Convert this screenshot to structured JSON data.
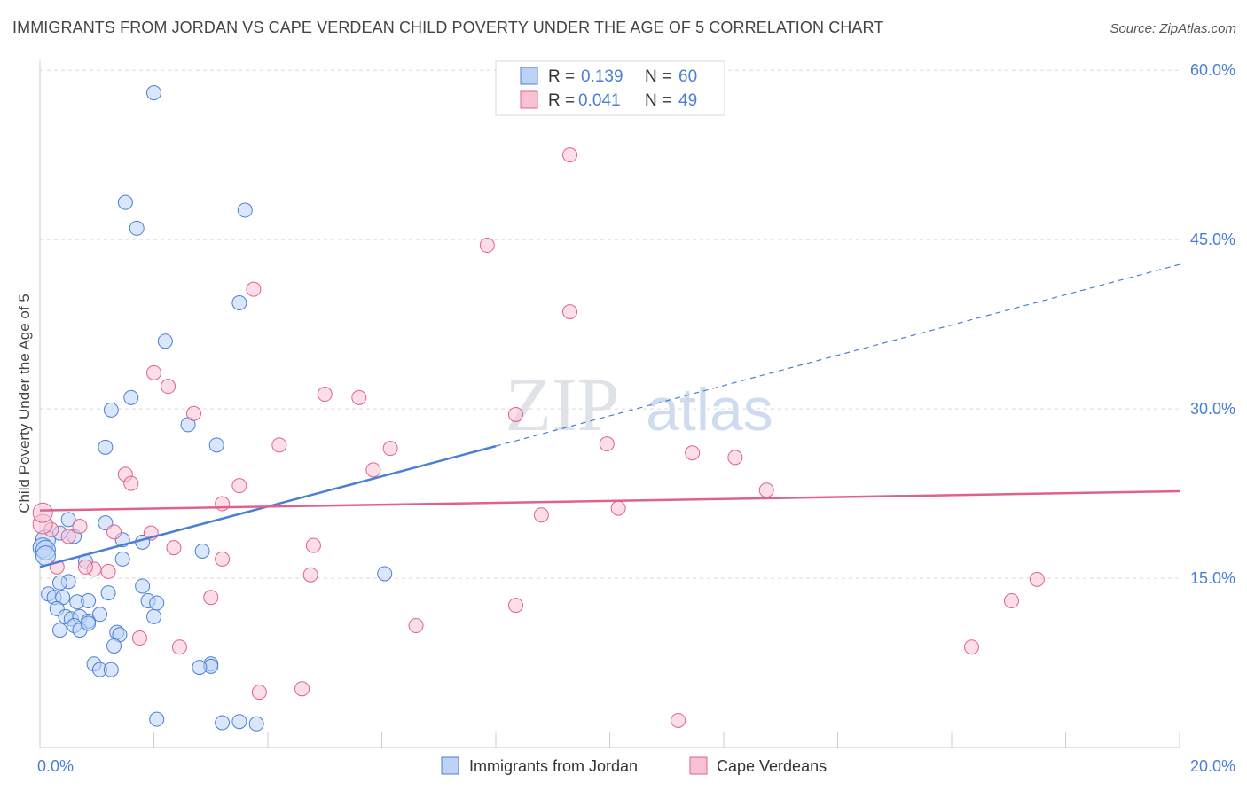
{
  "title": "IMMIGRANTS FROM JORDAN VS CAPE VERDEAN CHILD POVERTY UNDER THE AGE OF 5 CORRELATION CHART",
  "source": "Source: ZipAtlas.com",
  "watermark": {
    "zip": "ZIP",
    "atlas": "atlas"
  },
  "colors": {
    "blue": "#4a7fd6",
    "blue_fill": "#bcd3f5",
    "pink": "#e0618e",
    "pink_fill": "#f7c3d4",
    "tick_text": "#4a7fd6",
    "grid": "#d9d9d9"
  },
  "chart_data": {
    "type": "scatter",
    "ylabel": "Child Poverty Under the Age of 5",
    "xlabel": "",
    "xlim": [
      0,
      20
    ],
    "ylim": [
      0,
      60
    ],
    "x_ticks": [
      "0.0%",
      "20.0%"
    ],
    "y_ticks": [
      {
        "value": 15,
        "label": "15.0%"
      },
      {
        "value": 30,
        "label": "30.0%"
      },
      {
        "value": 45,
        "label": "45.0%"
      },
      {
        "value": 60,
        "label": "60.0%"
      }
    ],
    "legend_top": [
      {
        "r_label": "R =",
        "r": "0.139",
        "n_label": "N =",
        "n": "60"
      },
      {
        "r_label": "R =",
        "r": "0.041",
        "n_label": "N =",
        "n": "49"
      }
    ],
    "series": [
      {
        "name": "Immigrants from Jordan",
        "trend": {
          "x0": 0,
          "y0": 16.0,
          "x1": 8.0,
          "y1": 26.7,
          "x_ext": 20,
          "y_ext": 42.8
        },
        "points": [
          [
            2.0,
            58.0
          ],
          [
            1.5,
            48.3
          ],
          [
            1.7,
            46.0
          ],
          [
            3.6,
            47.6
          ],
          [
            3.5,
            39.4
          ],
          [
            2.2,
            36.0
          ],
          [
            1.6,
            31.0
          ],
          [
            1.25,
            29.9
          ],
          [
            2.6,
            28.6
          ],
          [
            1.15,
            26.6
          ],
          [
            3.1,
            26.8
          ],
          [
            0.5,
            20.2
          ],
          [
            1.15,
            19.9
          ],
          [
            0.1,
            18.4
          ],
          [
            0.35,
            19.0
          ],
          [
            0.6,
            18.7
          ],
          [
            1.45,
            18.4
          ],
          [
            1.8,
            18.2
          ],
          [
            0.05,
            17.7
          ],
          [
            0.1,
            17.5
          ],
          [
            2.85,
            17.4
          ],
          [
            0.8,
            16.5
          ],
          [
            1.45,
            16.7
          ],
          [
            6.05,
            15.4
          ],
          [
            0.5,
            14.7
          ],
          [
            1.8,
            14.3
          ],
          [
            0.35,
            14.6
          ],
          [
            1.2,
            13.7
          ],
          [
            0.15,
            13.6
          ],
          [
            0.25,
            13.3
          ],
          [
            0.4,
            13.3
          ],
          [
            0.65,
            12.9
          ],
          [
            0.85,
            13.0
          ],
          [
            1.9,
            13.0
          ],
          [
            2.05,
            12.8
          ],
          [
            0.3,
            12.3
          ],
          [
            0.45,
            11.6
          ],
          [
            0.55,
            11.4
          ],
          [
            0.7,
            11.6
          ],
          [
            0.85,
            11.2
          ],
          [
            1.05,
            11.8
          ],
          [
            2.0,
            11.6
          ],
          [
            0.6,
            10.8
          ],
          [
            0.7,
            10.4
          ],
          [
            0.85,
            11.0
          ],
          [
            1.35,
            10.2
          ],
          [
            1.4,
            10.0
          ],
          [
            0.35,
            10.4
          ],
          [
            1.3,
            9.0
          ],
          [
            3.0,
            7.4
          ],
          [
            3.0,
            7.2
          ],
          [
            0.95,
            7.4
          ],
          [
            1.05,
            6.9
          ],
          [
            1.25,
            6.9
          ],
          [
            2.8,
            7.1
          ],
          [
            2.05,
            2.5
          ],
          [
            3.2,
            2.2
          ],
          [
            3.5,
            2.3
          ],
          [
            3.8,
            2.1
          ],
          [
            0.1,
            17.0
          ]
        ]
      },
      {
        "name": "Cape Verdeans",
        "trend": {
          "x0": 0,
          "y0": 21.0,
          "x1": 20,
          "y1": 22.7
        },
        "points": [
          [
            9.3,
            52.5
          ],
          [
            7.85,
            44.5
          ],
          [
            3.75,
            40.6
          ],
          [
            9.3,
            38.6
          ],
          [
            2.0,
            33.2
          ],
          [
            2.25,
            32.0
          ],
          [
            5.0,
            31.3
          ],
          [
            5.6,
            31.0
          ],
          [
            2.7,
            29.6
          ],
          [
            8.35,
            29.5
          ],
          [
            4.2,
            26.8
          ],
          [
            6.15,
            26.5
          ],
          [
            9.95,
            26.9
          ],
          [
            11.45,
            26.1
          ],
          [
            12.2,
            25.7
          ],
          [
            5.85,
            24.6
          ],
          [
            1.5,
            24.2
          ],
          [
            1.6,
            23.4
          ],
          [
            3.5,
            23.2
          ],
          [
            12.75,
            22.8
          ],
          [
            3.2,
            21.6
          ],
          [
            8.8,
            20.6
          ],
          [
            10.15,
            21.2
          ],
          [
            0.2,
            19.3
          ],
          [
            0.7,
            19.6
          ],
          [
            1.3,
            19.1
          ],
          [
            1.95,
            19.0
          ],
          [
            4.8,
            17.9
          ],
          [
            0.5,
            18.7
          ],
          [
            2.35,
            17.7
          ],
          [
            3.2,
            16.7
          ],
          [
            0.95,
            15.8
          ],
          [
            1.2,
            15.6
          ],
          [
            4.75,
            15.3
          ],
          [
            0.3,
            16.0
          ],
          [
            0.8,
            16.0
          ],
          [
            17.5,
            14.9
          ],
          [
            3.0,
            13.3
          ],
          [
            17.05,
            13.0
          ],
          [
            8.35,
            12.6
          ],
          [
            6.6,
            10.8
          ],
          [
            1.75,
            9.7
          ],
          [
            2.45,
            8.9
          ],
          [
            16.35,
            8.9
          ],
          [
            4.6,
            5.2
          ],
          [
            3.85,
            4.9
          ],
          [
            11.2,
            2.4
          ],
          [
            0.05,
            19.8
          ],
          [
            0.05,
            20.8
          ]
        ]
      }
    ]
  }
}
